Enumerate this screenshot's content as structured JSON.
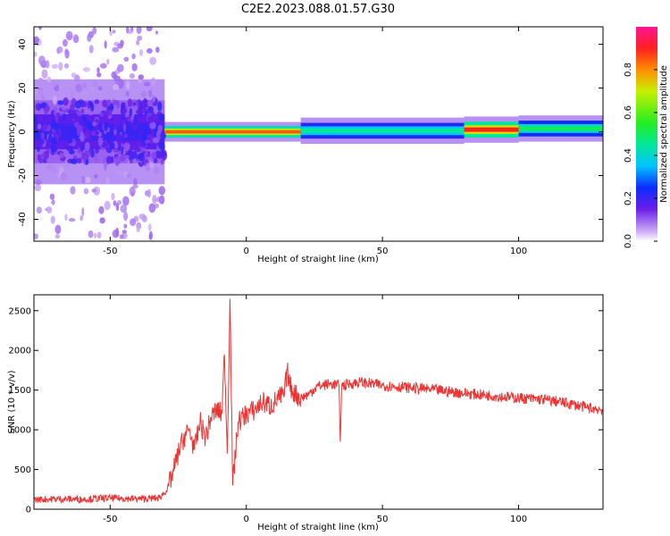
{
  "figure": {
    "title": "C2E2.2023.088.01.57.G30"
  },
  "chart_data": [
    {
      "type": "heatmap",
      "xlabel": "Height of straight line (km)",
      "ylabel": "Frequency (Hz)",
      "xlim": [
        -78,
        131
      ],
      "ylim": [
        -50,
        48
      ],
      "xticks": [
        -50,
        0,
        50,
        100
      ],
      "yticks": [
        -40,
        -20,
        0,
        20,
        40
      ],
      "colorbar": {
        "label": "Normalized spectral amplitude",
        "range": [
          0,
          1
        ],
        "ticks": [
          0.0,
          0.2,
          0.4,
          0.6,
          0.8
        ]
      },
      "bands": [
        {
          "x_start": -78,
          "x_end": -30,
          "freq_center": 0,
          "freq_halfwidth": 8,
          "level": 0.2
        },
        {
          "x_start": -30,
          "x_end": 20,
          "freq_center": 0,
          "freq_halfwidth": 1.5,
          "level": 0.85
        },
        {
          "x_start": 20,
          "x_end": 80,
          "freq_center": 0.5,
          "freq_halfwidth": 2,
          "level": 0.45
        },
        {
          "x_start": 80,
          "x_end": 100,
          "freq_center": 1,
          "freq_halfwidth": 2,
          "level": 0.9
        },
        {
          "x_start": 100,
          "x_end": 131,
          "freq_center": 1.5,
          "freq_halfwidth": 2,
          "level": 0.5
        }
      ]
    },
    {
      "type": "line",
      "xlabel": "Height of straight line (km)",
      "ylabel": "SNR (10 * v/v)",
      "xlim": [
        -78,
        131
      ],
      "ylim": [
        0,
        2700
      ],
      "xticks": [
        -50,
        0,
        50,
        100
      ],
      "yticks": [
        0,
        500,
        1000,
        1500,
        2000,
        2500
      ],
      "series": [
        {
          "color": "#ee3333",
          "x": [
            -78,
            -70,
            -60,
            -50,
            -40,
            -32,
            -29,
            -27,
            -25,
            -23,
            -21,
            -19,
            -17,
            -15,
            -13,
            -11,
            -9,
            -8,
            -7,
            -6,
            -5,
            -3,
            0,
            3,
            6,
            9,
            12,
            14,
            15,
            16,
            18,
            20,
            23,
            26,
            28,
            31,
            34,
            34.5,
            35,
            38,
            42,
            50,
            60,
            70,
            80,
            90,
            100,
            110,
            120,
            125,
            131
          ],
          "y": [
            120,
            130,
            125,
            140,
            130,
            140,
            250,
            450,
            700,
            900,
            1000,
            750,
            1100,
            900,
            1150,
            1250,
            1200,
            1950,
            700,
            2650,
            300,
            1100,
            1200,
            1250,
            1350,
            1300,
            1400,
            1450,
            1750,
            1550,
            1450,
            1400,
            1450,
            1550,
            1560,
            1580,
            1560,
            850,
            1550,
            1580,
            1600,
            1560,
            1530,
            1500,
            1460,
            1430,
            1400,
            1380,
            1320,
            1280,
            1250
          ]
        }
      ]
    }
  ]
}
